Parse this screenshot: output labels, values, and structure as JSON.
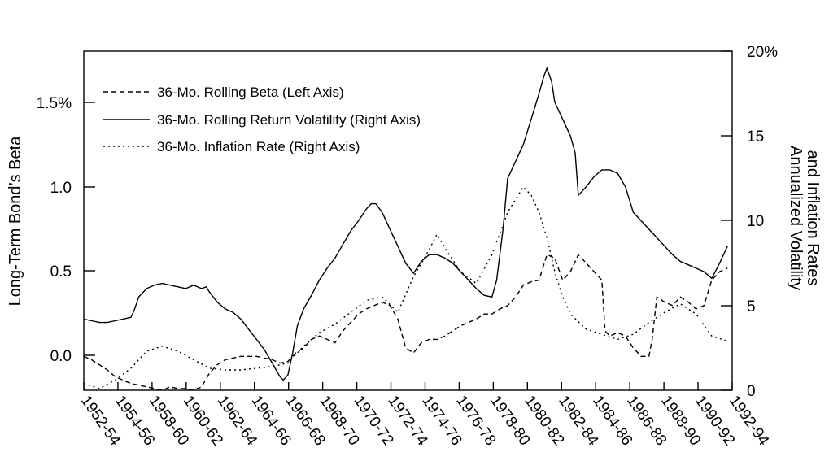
{
  "chart_data": {
    "type": "line",
    "title": "",
    "x_categories": [
      "1952-54",
      "1954-56",
      "1958-60",
      "1960-62",
      "1962-64",
      "1964-66",
      "1966-68",
      "1968-70",
      "1970-72",
      "1972-74",
      "1974-76",
      "1976-78",
      "1978-80",
      "1980-82",
      "1982-84",
      "1984-86",
      "1986-88",
      "1988-90",
      "1990-92",
      "1992-94"
    ],
    "left_axis": {
      "label": "Long-Term Bond’s Beta",
      "ylim": [
        -0.2,
        1.8
      ],
      "ticks": [
        0.0,
        0.5,
        1.0,
        1.5
      ],
      "tick_labels": [
        "0.0",
        "0.5",
        "1.0",
        "1.5%"
      ]
    },
    "right_axis": {
      "label_line1": "Annualized Volatility",
      "label_line2": "and Inflation Rates",
      "ylim": [
        0,
        20
      ],
      "ticks": [
        0,
        5,
        10,
        15,
        20
      ],
      "tick_labels": [
        "0",
        "5",
        "10",
        "15",
        "20%"
      ]
    },
    "legend": {
      "placement": "top-left",
      "entries": [
        {
          "label": "36-Mo. Rolling Beta (Left Axis)",
          "style": "dashed"
        },
        {
          "label": "36-Mo. Rolling Return Volatility (Right Axis)",
          "style": "solid"
        },
        {
          "label": "36-Mo. Inflation Rate (Right Axis)",
          "style": "dotted"
        }
      ]
    },
    "series": [
      {
        "name": "36-Mo. Rolling Beta (Left Axis)",
        "axis": "left",
        "style": "dashed",
        "x": [
          1952.0,
          1952.5,
          1953.0,
          1953.5,
          1954.0,
          1954.5,
          1955.0,
          1955.5,
          1956.0,
          1956.5,
          1957.0,
          1957.5,
          1958.0,
          1958.5,
          1959.0,
          1959.5,
          1960.0,
          1960.5,
          1961.0,
          1962.0,
          1963.0,
          1964.0,
          1964.5,
          1965.0,
          1965.5,
          1966.0,
          1966.5,
          1967.0,
          1967.5,
          1968.0,
          1968.5,
          1969.0,
          1969.5,
          1970.0,
          1970.5,
          1971.0,
          1971.5,
          1972.0,
          1972.5,
          1973.0,
          1973.5,
          1974.0,
          1974.5,
          1975.0,
          1975.5,
          1976.0,
          1976.5,
          1977.0,
          1977.5,
          1978.0,
          1978.5,
          1979.0,
          1979.5,
          1980.0,
          1980.5,
          1981.0,
          1981.5,
          1982.0,
          1982.5,
          1983.0,
          1983.5,
          1984.0,
          1984.5,
          1985.0,
          1985.2,
          1985.5,
          1986.0,
          1986.5,
          1987.0,
          1987.5,
          1988.0,
          1988.2,
          1988.5,
          1989.0,
          1989.5,
          1990.0,
          1990.5,
          1991.0,
          1991.5,
          1992.0,
          1992.5,
          1993.0
        ],
        "values": [
          0.0,
          -0.02,
          -0.05,
          -0.08,
          -0.12,
          -0.14,
          -0.16,
          -0.17,
          -0.18,
          -0.19,
          -0.2,
          -0.18,
          -0.19,
          -0.19,
          -0.2,
          -0.18,
          -0.1,
          -0.05,
          -0.02,
          0.0,
          0.0,
          -0.02,
          -0.04,
          -0.03,
          0.02,
          0.05,
          0.1,
          0.12,
          0.1,
          0.08,
          0.15,
          0.2,
          0.25,
          0.28,
          0.3,
          0.32,
          0.3,
          0.22,
          0.05,
          0.02,
          0.08,
          0.1,
          0.1,
          0.12,
          0.15,
          0.18,
          0.2,
          0.22,
          0.25,
          0.25,
          0.28,
          0.3,
          0.35,
          0.42,
          0.44,
          0.45,
          0.6,
          0.58,
          0.45,
          0.5,
          0.6,
          0.55,
          0.5,
          0.45,
          0.15,
          0.12,
          0.14,
          0.12,
          0.05,
          0.0,
          0.0,
          0.1,
          0.35,
          0.32,
          0.3,
          0.35,
          0.32,
          0.28,
          0.3,
          0.45,
          0.5,
          0.52
        ]
      },
      {
        "name": "36-Mo. Rolling Return Volatility (Right Axis)",
        "axis": "right",
        "style": "solid",
        "x": [
          1952.0,
          1952.5,
          1953.0,
          1953.5,
          1954.0,
          1954.5,
          1955.0,
          1955.2,
          1955.5,
          1956.0,
          1956.5,
          1957.0,
          1957.5,
          1958.0,
          1958.5,
          1959.0,
          1959.5,
          1959.8,
          1960.0,
          1960.5,
          1961.0,
          1961.5,
          1962.0,
          1962.5,
          1963.0,
          1963.5,
          1964.0,
          1964.5,
          1964.7,
          1965.0,
          1965.3,
          1965.6,
          1966.0,
          1966.5,
          1967.0,
          1967.5,
          1968.0,
          1968.5,
          1969.0,
          1969.5,
          1970.0,
          1970.3,
          1970.6,
          1971.0,
          1971.5,
          1972.0,
          1972.5,
          1973.0,
          1973.5,
          1974.0,
          1974.5,
          1975.0,
          1975.5,
          1976.0,
          1976.5,
          1977.0,
          1977.5,
          1978.0,
          1978.3,
          1978.7,
          1979.0,
          1979.5,
          1980.0,
          1980.5,
          1981.0,
          1981.3,
          1981.5,
          1981.8,
          1982.0,
          1982.5,
          1983.0,
          1983.3,
          1983.5,
          1984.0,
          1984.5,
          1985.0,
          1985.5,
          1986.0,
          1986.5,
          1987.0,
          1987.5,
          1988.0,
          1988.5,
          1989.0,
          1989.5,
          1990.0,
          1990.5,
          1991.0,
          1991.5,
          1992.0,
          1992.5,
          1993.0
        ],
        "values": [
          4.2,
          4.1,
          4.0,
          4.0,
          4.1,
          4.2,
          4.3,
          4.7,
          5.5,
          6.0,
          6.2,
          6.3,
          6.2,
          6.1,
          6.0,
          6.2,
          6.0,
          6.1,
          5.8,
          5.2,
          4.8,
          4.6,
          4.2,
          3.6,
          3.0,
          2.4,
          1.6,
          0.8,
          0.6,
          0.9,
          2.2,
          3.8,
          4.8,
          5.6,
          6.5,
          7.2,
          7.8,
          8.6,
          9.4,
          10.0,
          10.7,
          11.0,
          11.0,
          10.5,
          9.5,
          8.5,
          7.5,
          6.9,
          7.6,
          8.0,
          8.0,
          7.8,
          7.5,
          7.0,
          6.5,
          6.0,
          5.6,
          5.5,
          6.5,
          9.5,
          12.5,
          13.5,
          14.5,
          16.0,
          17.5,
          18.5,
          19.0,
          18.2,
          17.0,
          16.0,
          15.0,
          14.0,
          11.5,
          12.0,
          12.6,
          13.0,
          13.0,
          12.8,
          12.0,
          10.5,
          10.0,
          9.5,
          9.0,
          8.5,
          8.0,
          7.6,
          7.4,
          7.2,
          7.0,
          6.6,
          7.5,
          8.5
        ]
      },
      {
        "name": "36-Mo. Inflation Rate (Right Axis)",
        "axis": "right",
        "style": "dotted",
        "x": [
          1952.0,
          1953.0,
          1954.0,
          1955.0,
          1956.0,
          1957.0,
          1958.0,
          1959.0,
          1960.0,
          1961.0,
          1962.0,
          1963.0,
          1964.0,
          1965.0,
          1966.0,
          1967.0,
          1968.0,
          1969.0,
          1970.0,
          1971.0,
          1972.0,
          1973.0,
          1974.0,
          1974.5,
          1975.0,
          1976.0,
          1977.0,
          1978.0,
          1979.0,
          1980.0,
          1980.5,
          1981.0,
          1981.5,
          1982.0,
          1982.5,
          1983.0,
          1984.0,
          1985.0,
          1986.0,
          1987.0,
          1988.0,
          1989.0,
          1990.0,
          1991.0,
          1992.0,
          1993.0
        ],
        "values": [
          0.4,
          0.1,
          0.6,
          1.3,
          2.3,
          2.6,
          2.3,
          1.8,
          1.3,
          1.2,
          1.2,
          1.3,
          1.4,
          1.6,
          2.6,
          3.4,
          3.9,
          4.6,
          5.3,
          5.5,
          4.6,
          6.7,
          8.3,
          9.2,
          8.4,
          7.0,
          6.3,
          8.0,
          10.5,
          12.0,
          11.5,
          10.5,
          9.0,
          7.0,
          5.5,
          4.5,
          3.6,
          3.3,
          3.0,
          3.3,
          4.0,
          4.6,
          5.1,
          4.5,
          3.2,
          2.9
        ]
      }
    ]
  }
}
